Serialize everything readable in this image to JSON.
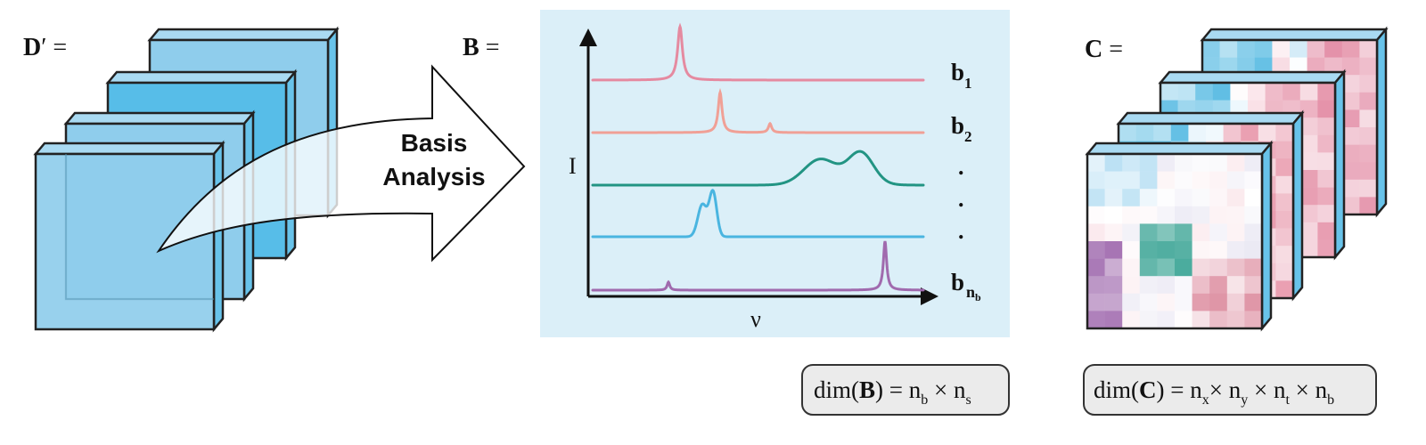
{
  "left": {
    "label_main": "D",
    "label_rest": "′ ="
  },
  "arrow": {
    "line1": "Basis",
    "line2": "Analysis"
  },
  "middle": {
    "label_main": "B",
    "label_rest": " =",
    "y_axis_label": "I",
    "x_axis_label": "ν",
    "basis_labels": [
      {
        "main": "b",
        "sub": "1"
      },
      {
        "main": "b",
        "sub": "2"
      },
      {
        "main": "b",
        "sub": "n",
        "subsub": "b"
      }
    ],
    "ellipsis": [
      ".",
      ".",
      "."
    ],
    "curve_colors": [
      "#e58aa0",
      "#f0a096",
      "#229483",
      "#4ab5e0",
      "#a06aae"
    ],
    "panel_color": "#dbeff8"
  },
  "right": {
    "label_main": "C",
    "label_rest": " ="
  },
  "dim_b": {
    "prefix": "dim(",
    "bold": "B",
    "suffix": ") = ",
    "n1": "n",
    "s1": "b",
    "times": " × ",
    "n2": "n",
    "s2": "s"
  },
  "dim_c": {
    "prefix": "dim(",
    "bold": "C",
    "suffix": ") = ",
    "n1": "n",
    "s1": "x",
    "t1": "× ",
    "n2": "n",
    "s2": "y",
    "t2": " × ",
    "n3": "n",
    "s3": "t",
    "t3": " × ",
    "n4": "n",
    "s4": "b"
  },
  "colors": {
    "cube_front": "#8fcdec",
    "cube_mid": "#57bde8",
    "cube_side": "#68c3ea",
    "outline": "#222222"
  }
}
